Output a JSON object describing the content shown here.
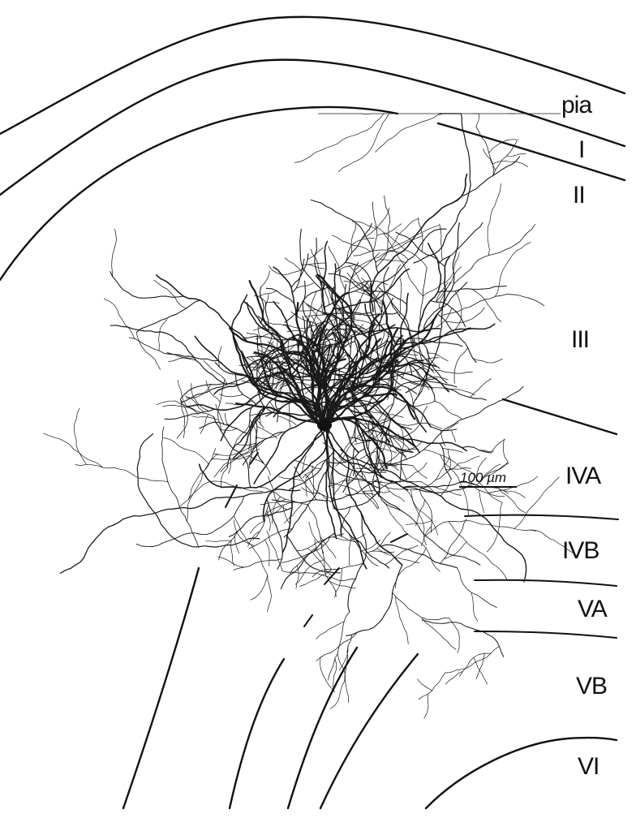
{
  "figure": {
    "scale_bar_label": "100 µm",
    "layer_labels": {
      "pia": "pia",
      "l1": "I",
      "l2": "II",
      "l3": "III",
      "l4a": "IVA",
      "l4b": "IVB",
      "l5a": "VA",
      "l5b": "VB",
      "l6": "VI"
    },
    "ink_color": "#111111",
    "background_color": "#ffffff"
  }
}
